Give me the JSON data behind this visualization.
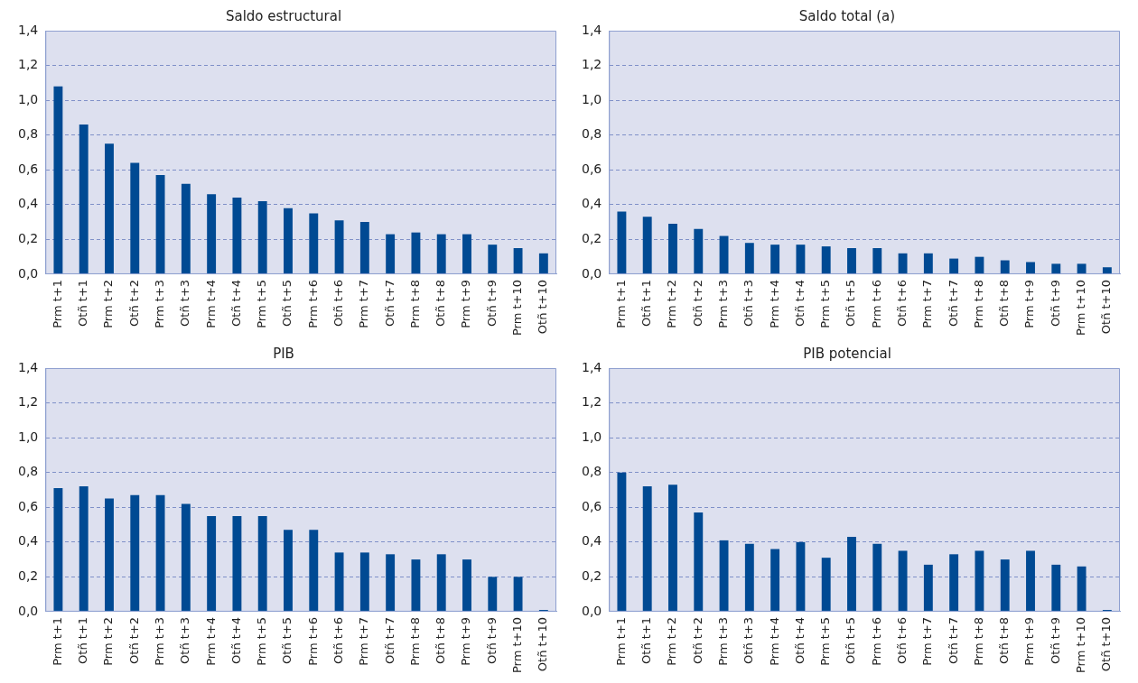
{
  "chart_data": [
    {
      "type": "bar",
      "title": "Saldo estructural",
      "categories": [
        "Prm t+1",
        "Otñ t+1",
        "Prm t+2",
        "Otñ t+2",
        "Prm t+3",
        "Otñ t+3",
        "Prm t+4",
        "Otñ t+4",
        "Prm t+5",
        "Otñ t+5",
        "Prm t+6",
        "Otñ t+6",
        "Prm t+7",
        "Otñ t+7",
        "Prm t+8",
        "Otñ t+8",
        "Prm t+9",
        "Otñ t+9",
        "Prm t+10",
        "Otñ t+10"
      ],
      "values": [
        1.08,
        0.86,
        0.75,
        0.64,
        0.57,
        0.52,
        0.46,
        0.44,
        0.42,
        0.38,
        0.35,
        0.31,
        0.3,
        0.23,
        0.24,
        0.23,
        0.23,
        0.17,
        0.15,
        0.12
      ],
      "color": "#004a93",
      "ylim": [
        0,
        1.4
      ],
      "yticks": [
        {
          "value": 0,
          "label": "0,0"
        },
        {
          "value": 0.2,
          "label": "0,2"
        },
        {
          "value": 0.4,
          "label": "0,4"
        },
        {
          "value": 0.6,
          "label": "0,6"
        },
        {
          "value": 0.8,
          "label": "0,8"
        },
        {
          "value": 1.0,
          "label": "1,0"
        },
        {
          "value": 1.2,
          "label": "1,2"
        },
        {
          "value": 1.4,
          "label": "1,4"
        }
      ],
      "grid": "y"
    },
    {
      "type": "bar",
      "title": "Saldo total (a)",
      "categories": [
        "Prm t+1",
        "Otñ t+1",
        "Prm t+2",
        "Otñ t+2",
        "Prm t+3",
        "Otñ t+3",
        "Prm t+4",
        "Otñ t+4",
        "Prm t+5",
        "Otñ t+5",
        "Prm t+6",
        "Otñ t+6",
        "Prm t+7",
        "Otñ t+7",
        "Prm t+8",
        "Otñ t+8",
        "Prm t+9",
        "Otñ t+9",
        "Prm t+10",
        "Otñ t+10"
      ],
      "values": [
        0.36,
        0.33,
        0.29,
        0.26,
        0.22,
        0.18,
        0.17,
        0.17,
        0.16,
        0.15,
        0.15,
        0.12,
        0.12,
        0.09,
        0.1,
        0.08,
        0.07,
        0.06,
        0.06,
        0.04
      ],
      "color": "#004a93",
      "ylim": [
        0,
        1.4
      ],
      "yticks": [
        {
          "value": 0,
          "label": "0,0"
        },
        {
          "value": 0.2,
          "label": "0,2"
        },
        {
          "value": 0.4,
          "label": "0,4"
        },
        {
          "value": 0.6,
          "label": "0,6"
        },
        {
          "value": 0.8,
          "label": "0,8"
        },
        {
          "value": 1.0,
          "label": "1,0"
        },
        {
          "value": 1.2,
          "label": "1,2"
        },
        {
          "value": 1.4,
          "label": "1,4"
        }
      ],
      "grid": "y"
    },
    {
      "type": "bar",
      "title": "PIB",
      "categories": [
        "Prm t+1",
        "Otñ t+1",
        "Prm t+2",
        "Otñ t+2",
        "Prm t+3",
        "Otñ t+3",
        "Prm t+4",
        "Otñ t+4",
        "Prm t+5",
        "Otñ t+5",
        "Prm t+6",
        "Otñ t+6",
        "Prm t+7",
        "Otñ t+7",
        "Prm t+8",
        "Otñ t+8",
        "Prm t+9",
        "Otñ t+9",
        "Prm t+10",
        "Otñ t+10"
      ],
      "values": [
        0.71,
        0.72,
        0.65,
        0.67,
        0.67,
        0.62,
        0.55,
        0.55,
        0.55,
        0.47,
        0.47,
        0.34,
        0.34,
        0.33,
        0.3,
        0.33,
        0.3,
        0.2,
        0.2,
        0.01
      ],
      "color": "#004a93",
      "ylim": [
        0,
        1.4
      ],
      "yticks": [
        {
          "value": 0,
          "label": "0,0"
        },
        {
          "value": 0.2,
          "label": "0,2"
        },
        {
          "value": 0.4,
          "label": "0,4"
        },
        {
          "value": 0.6,
          "label": "0,6"
        },
        {
          "value": 0.8,
          "label": "0,8"
        },
        {
          "value": 1.0,
          "label": "1,0"
        },
        {
          "value": 1.2,
          "label": "1,2"
        },
        {
          "value": 1.4,
          "label": "1,4"
        }
      ],
      "grid": "y"
    },
    {
      "type": "bar",
      "title": "PIB potencial",
      "categories": [
        "Prm t+1",
        "Otñ t+1",
        "Prm t+2",
        "Otñ t+2",
        "Prm t+3",
        "Otñ t+3",
        "Prm t+4",
        "Otñ t+4",
        "Prm t+5",
        "Otñ t+5",
        "Prm t+6",
        "Otñ t+6",
        "Prm t+7",
        "Otñ t+7",
        "Prm t+8",
        "Otñ t+8",
        "Prm t+9",
        "Otñ t+9",
        "Prm t+10",
        "Otñ t+10"
      ],
      "values": [
        0.8,
        0.72,
        0.73,
        0.57,
        0.41,
        0.39,
        0.36,
        0.4,
        0.31,
        0.43,
        0.39,
        0.35,
        0.27,
        0.33,
        0.35,
        0.3,
        0.35,
        0.27,
        0.26,
        0.01
      ],
      "color": "#004a93",
      "ylim": [
        0,
        1.4
      ],
      "yticks": [
        {
          "value": 0,
          "label": "0,0"
        },
        {
          "value": 0.2,
          "label": "0,2"
        },
        {
          "value": 0.4,
          "label": "0,4"
        },
        {
          "value": 0.6,
          "label": "0,6"
        },
        {
          "value": 0.8,
          "label": "0,8"
        },
        {
          "value": 1.0,
          "label": "1,0"
        },
        {
          "value": 1.2,
          "label": "1,2"
        },
        {
          "value": 1.4,
          "label": "1,4"
        }
      ],
      "grid": "y"
    }
  ]
}
